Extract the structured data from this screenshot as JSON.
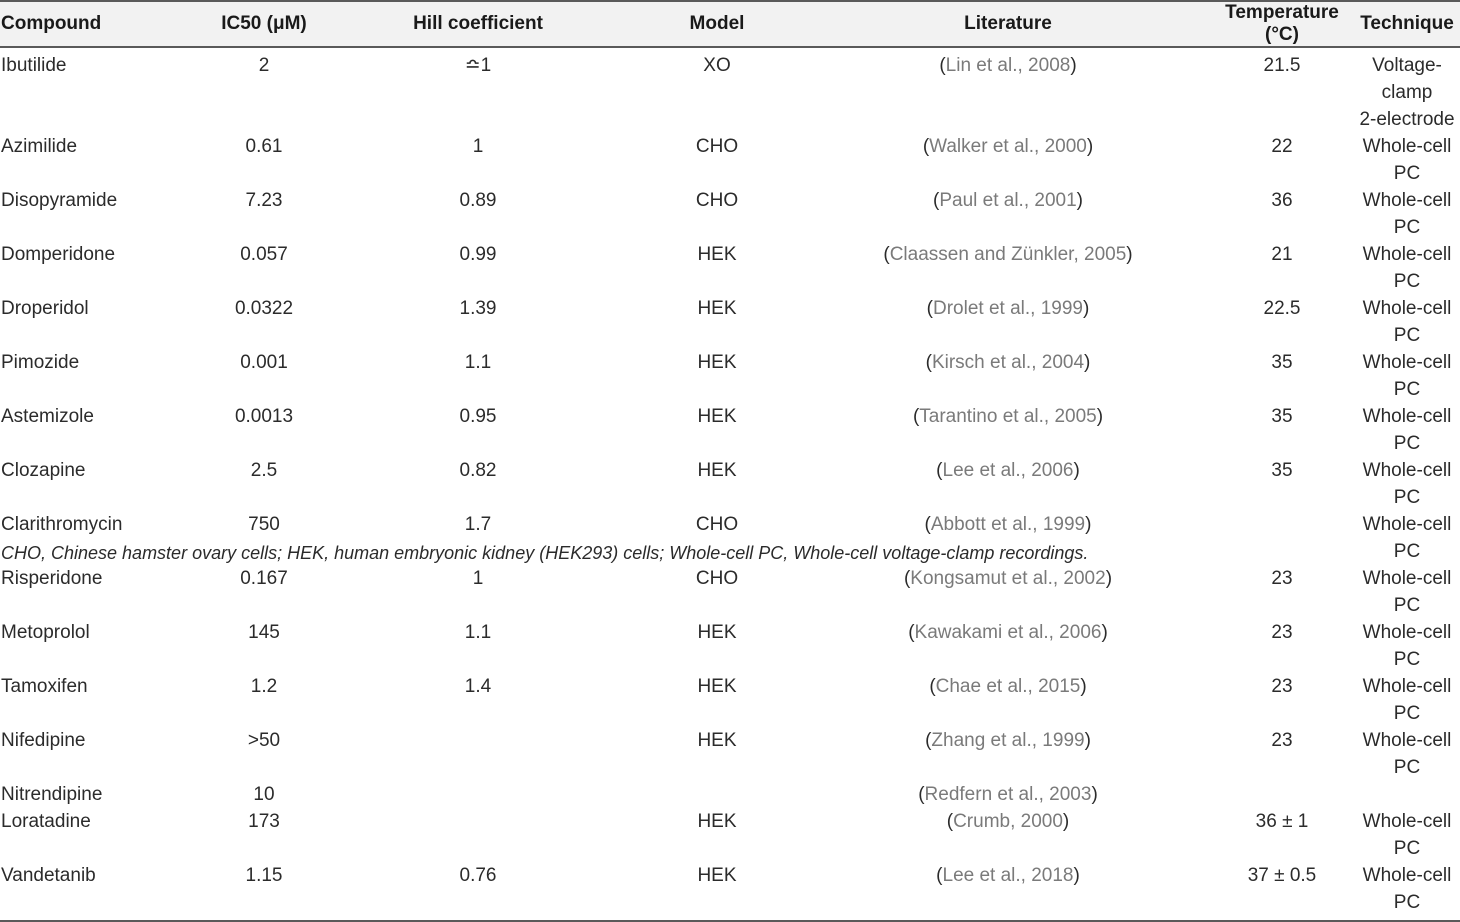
{
  "headers": [
    "Compound",
    "IC50 (μM)",
    "Hill coefficient",
    "Model",
    "Literature",
    "Temperature (°C)",
    "Technique"
  ],
  "rows": [
    {
      "compound": "Ibutilide",
      "ic50": "2",
      "hill": "≏1",
      "model": "XO",
      "lit": "Lin et al., 2008",
      "temp": "21.5",
      "tech": "Voltage-clamp",
      "tech2": "2-electrode"
    },
    {
      "compound": "Azimilide",
      "ic50": "0.61",
      "hill": "1",
      "model": "CHO",
      "lit": "Walker et al., 2000",
      "temp": "22",
      "tech": "Whole-cell PC"
    },
    {
      "compound": "Disopyramide",
      "ic50": "7.23",
      "hill": "0.89",
      "model": "CHO",
      "lit": "Paul et al., 2001",
      "temp": "36",
      "tech": "Whole-cell PC"
    },
    {
      "compound": "Domperidone",
      "ic50": "0.057",
      "hill": "0.99",
      "model": "HEK",
      "lit": "Claassen and Zünkler, 2005",
      "temp": "21",
      "tech": "Whole-cell PC"
    },
    {
      "compound": "Droperidol",
      "ic50": "0.0322",
      "hill": "1.39",
      "model": "HEK",
      "lit": "Drolet et al., 1999",
      "temp": "22.5",
      "tech": "Whole-cell PC"
    },
    {
      "compound": "Pimozide",
      "ic50": "0.001",
      "hill": "1.1",
      "model": "HEK",
      "lit": "Kirsch et al., 2004",
      "temp": "35",
      "tech": "Whole-cell PC"
    },
    {
      "compound": "Astemizole",
      "ic50": "0.0013",
      "hill": "0.95",
      "model": "HEK",
      "lit": "Tarantino et al., 2005",
      "temp": "35",
      "tech": "Whole-cell PC"
    },
    {
      "compound": "Clozapine",
      "ic50": "2.5",
      "hill": "0.82",
      "model": "HEK",
      "lit": "Lee et al., 2006",
      "temp": "35",
      "tech": "Whole-cell PC"
    },
    {
      "compound": "Clarithromycin",
      "ic50": "750",
      "hill": "1.7",
      "model": "CHO",
      "lit": "Abbott et al., 1999",
      "temp": "",
      "tech": "Whole-cell PC"
    },
    {
      "compound": "Risperidone",
      "ic50": "0.167",
      "hill": "1",
      "model": "CHO",
      "lit": "Kongsamut et al., 2002",
      "temp": "23",
      "tech": "Whole-cell PC"
    },
    {
      "compound": "Metoprolol",
      "ic50": "145",
      "hill": "1.1",
      "model": "HEK",
      "lit": "Kawakami et al., 2006",
      "temp": "23",
      "tech": "Whole-cell PC"
    },
    {
      "compound": "Tamoxifen",
      "ic50": "1.2",
      "hill": "1.4",
      "model": "HEK",
      "lit": "Chae et al., 2015",
      "temp": "23",
      "tech": "Whole-cell PC"
    },
    {
      "compound": "Nifedipine",
      "ic50": ">50",
      "hill": "",
      "model": "HEK",
      "lit": "Zhang et al., 1999",
      "temp": "23",
      "tech": "Whole-cell PC"
    },
    {
      "compound": "Nitrendipine",
      "ic50": "10",
      "hill": "",
      "model": "",
      "lit": "Redfern et al., 2003",
      "temp": "",
      "tech": ""
    },
    {
      "compound": "Loratadine",
      "ic50": "173",
      "hill": "",
      "model": "HEK",
      "lit": "Crumb, 2000",
      "temp": "36 ± 1",
      "tech": "Whole-cell PC"
    },
    {
      "compound": "Vandetanib",
      "ic50": "1.15",
      "hill": "0.76",
      "model": "HEK",
      "lit": "Lee et al., 2018",
      "temp": "37 ± 0.5",
      "tech": "Whole-cell PC"
    }
  ],
  "footnote": "CHO, Chinese hamster ovary cells; HEK, human embryonic kidney (HEK293) cells; Whole-cell PC, Whole-cell voltage-clamp recordings."
}
